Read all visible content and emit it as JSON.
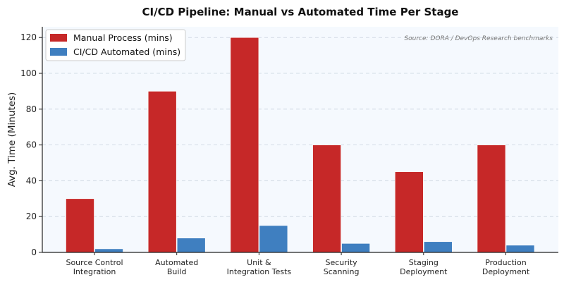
{
  "chart_data": {
    "type": "bar",
    "title": "CI/CD Pipeline: Manual vs Automated Time Per Stage",
    "xlabel": "",
    "ylabel": "Avg. Time (Minutes)",
    "annotation": "Source: DORA / DevOps Research benchmarks",
    "categories": [
      [
        "Source Control",
        "Integration"
      ],
      [
        "Automated",
        "Build"
      ],
      [
        "Unit &",
        "Integration Tests"
      ],
      [
        "Security",
        "Scanning"
      ],
      [
        "Staging",
        "Deployment"
      ],
      [
        "Production",
        "Deployment"
      ]
    ],
    "series": [
      {
        "name": "Manual Process (mins)",
        "color": "#c62828",
        "values": [
          30,
          90,
          120,
          60,
          45,
          60
        ]
      },
      {
        "name": "CI/CD Automated (mins)",
        "color": "#3f7fc0",
        "values": [
          2,
          8,
          15,
          5,
          6,
          4
        ]
      }
    ],
    "ylim": [
      0,
      126
    ],
    "yticks": [
      0,
      20,
      40,
      60,
      80,
      100,
      120
    ],
    "grid": "horizontal-dashed",
    "legend": "top-left"
  }
}
